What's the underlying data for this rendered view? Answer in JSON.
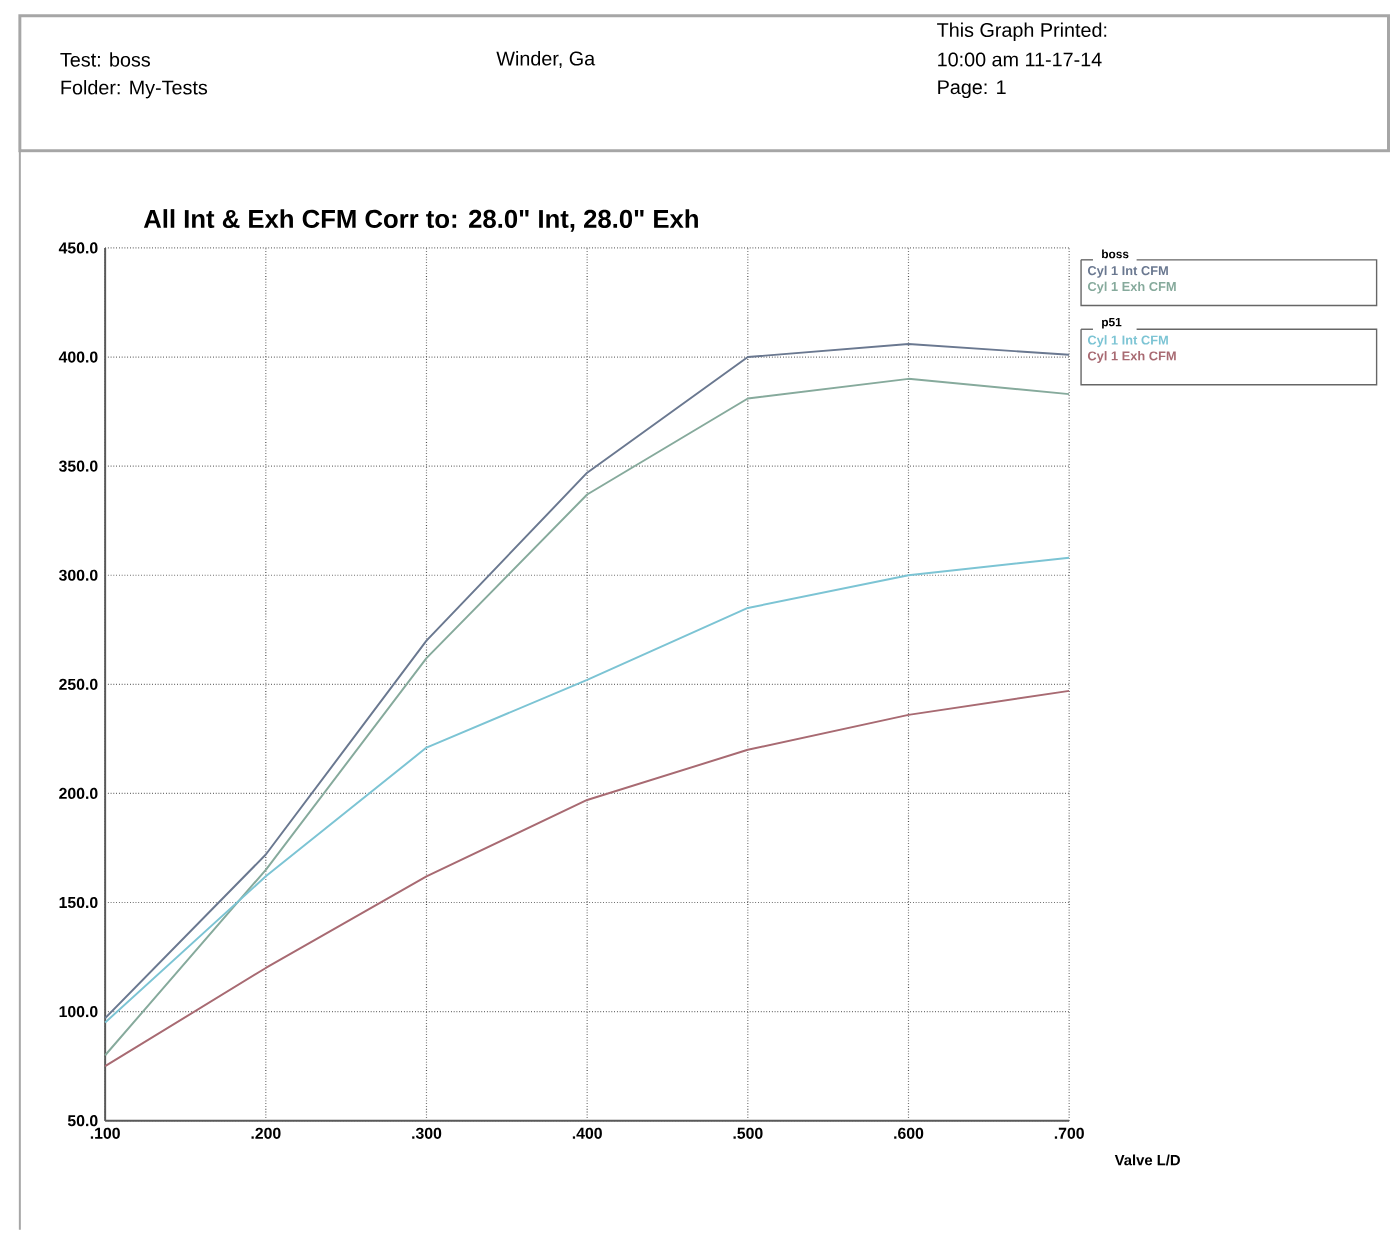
{
  "chart_data": {
    "type": "line",
    "title": "All Int & Exh CFM   Corr to: 28.0\" Int, 28.0\" Exh",
    "xlabel": "Valve L/D",
    "x": [
      0.1,
      0.2,
      0.3,
      0.4,
      0.5,
      0.6,
      0.7
    ],
    "series": [
      {
        "name": "Cyl 1 Int CFM",
        "color": "#6a7890",
        "values": [
          97,
          172,
          270,
          347,
          400,
          406,
          401
        ]
      },
      {
        "name": "Cyl 1 Exh CFM",
        "color": "#86aa9c",
        "values": [
          80,
          165,
          262,
          337,
          381,
          390,
          383
        ]
      },
      {
        "name": "Cyl 1 Int CFM",
        "color": "#7cc4d4",
        "values": [
          95,
          162,
          221,
          252,
          285,
          300,
          308
        ]
      },
      {
        "name": "Cyl 1 Exh CFM",
        "color": "#a86a72",
        "values": [
          75,
          120,
          162,
          197,
          220,
          236,
          247
        ]
      }
    ],
    "xlim": [
      0.1,
      0.7
    ],
    "ylim": [
      50,
      450
    ],
    "xticks": [
      {
        "value": 0.1,
        "label": ".100"
      },
      {
        "value": 0.2,
        "label": ".200"
      },
      {
        "value": 0.3,
        "label": ".300"
      },
      {
        "value": 0.4,
        "label": ".400"
      },
      {
        "value": 0.5,
        "label": ".500"
      },
      {
        "value": 0.6,
        "label": ".600"
      },
      {
        "value": 0.7,
        "label": ".700"
      }
    ],
    "yticks": [
      {
        "value": 50,
        "label": "50.0"
      },
      {
        "value": 100,
        "label": "100.0"
      },
      {
        "value": 150,
        "label": "150.0"
      },
      {
        "value": 200,
        "label": "200.0"
      },
      {
        "value": 250,
        "label": "250.0"
      },
      {
        "value": 300,
        "label": "300.0"
      },
      {
        "value": 350,
        "label": "350.0"
      },
      {
        "value": 400,
        "label": "400.0"
      },
      {
        "value": 450,
        "label": "450.0"
      }
    ],
    "grid": true,
    "legend": "top right",
    "marker": "none",
    "line_style": "solid",
    "annotations": [
      "Test: boss",
      "Folder: My-Tests",
      "Winder, Ga",
      "This Graph Printed:",
      "10:00 am 11-17-14",
      "Page: 1",
      "boss",
      "p51"
    ]
  }
}
